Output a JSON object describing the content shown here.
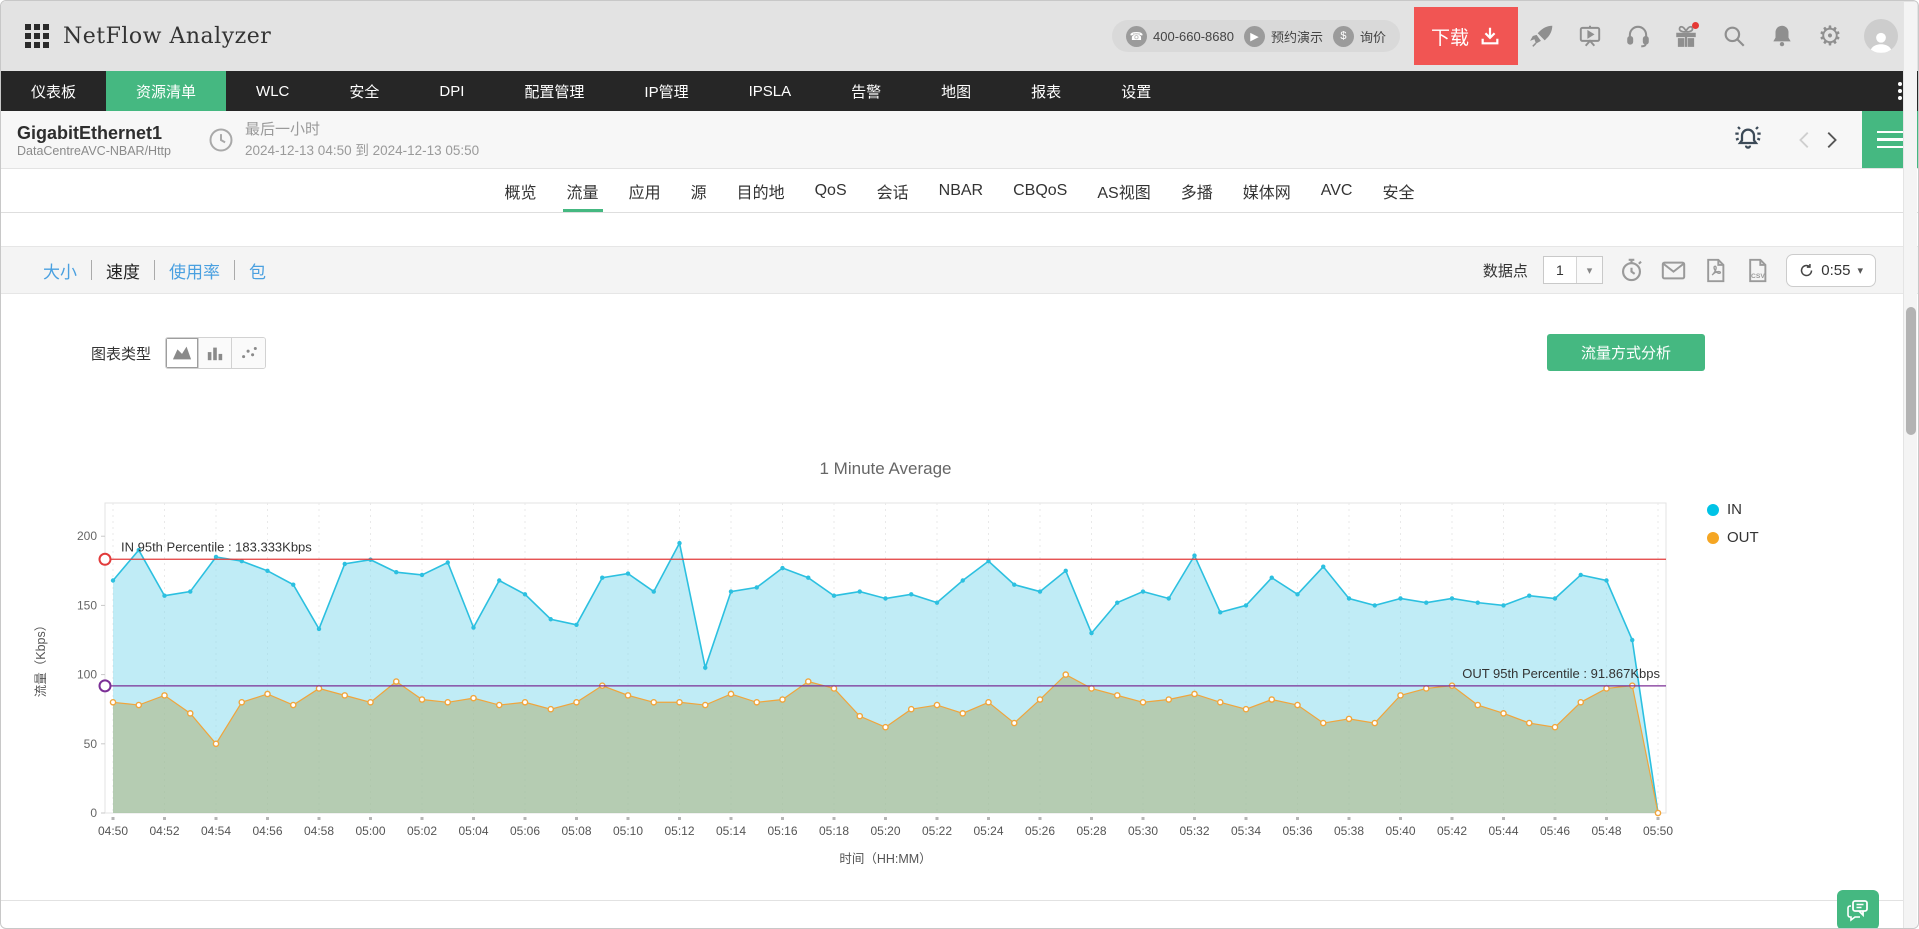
{
  "colors": {
    "accent_green": "#45b881",
    "download_red": "#f15553",
    "link_blue": "#4aa0e0",
    "in_color": "#2cc0e0",
    "in_fill": "rgba(141,220,238,0.55)",
    "out_color": "#f0a53c",
    "out_fill": "rgba(172,178,122,0.55)",
    "in_percentile_line": "#e23b3b",
    "out_percentile_line": "#7b2f96"
  },
  "header": {
    "title": "NetFlow Analyzer",
    "phone": "400-660-8680",
    "demo_label": "预约演示",
    "quote_label": "询价",
    "download_label": "下载",
    "icon_names": [
      "apps-grid-icon",
      "phone-icon",
      "demo-play-icon",
      "price-dollar-icon",
      "download-icon",
      "rocket-icon",
      "presentation-icon",
      "headset-icon",
      "gift-icon",
      "search-icon",
      "bell-icon",
      "gear-icon",
      "avatar"
    ]
  },
  "nav": {
    "items": [
      {
        "label": "仪表板",
        "active": false
      },
      {
        "label": "资源清单",
        "active": true
      },
      {
        "label": "WLC",
        "active": false
      },
      {
        "label": "安全",
        "active": false
      },
      {
        "label": "DPI",
        "active": false
      },
      {
        "label": "配置管理",
        "active": false
      },
      {
        "label": "IP管理",
        "active": false
      },
      {
        "label": "IPSLA",
        "active": false
      },
      {
        "label": "告警",
        "active": false
      },
      {
        "label": "地图",
        "active": false
      },
      {
        "label": "报表",
        "active": false
      },
      {
        "label": "设置",
        "active": false
      }
    ]
  },
  "subheader": {
    "title": "GigabitEthernet1",
    "subtitle": "DataCentreAVC-NBAR/Http",
    "time_range_label": "最后一小时",
    "time_range": "2024-12-13 04:50 到 2024-12-13 05:50"
  },
  "tabs": {
    "items": [
      {
        "label": "概览",
        "active": false
      },
      {
        "label": "流量",
        "active": true
      },
      {
        "label": "应用",
        "active": false
      },
      {
        "label": "源",
        "active": false
      },
      {
        "label": "目的地",
        "active": false
      },
      {
        "label": "QoS",
        "active": false
      },
      {
        "label": "会话",
        "active": false
      },
      {
        "label": "NBAR",
        "active": false
      },
      {
        "label": "CBQoS",
        "active": false
      },
      {
        "label": "AS视图",
        "active": false
      },
      {
        "label": "多播",
        "active": false
      },
      {
        "label": "媒体网",
        "active": false
      },
      {
        "label": "AVC",
        "active": false
      },
      {
        "label": "安全",
        "active": false
      }
    ]
  },
  "toolbar": {
    "views": [
      {
        "label": "大小",
        "style": "link"
      },
      {
        "label": "速度",
        "style": "current"
      },
      {
        "label": "使用率",
        "style": "link"
      },
      {
        "label": "包",
        "style": "link"
      }
    ],
    "datapoints_label": "数据点",
    "datapoints_value": "1",
    "refresh_countdown": "0:55",
    "icon_names": [
      "schedule-icon",
      "mail-icon",
      "pdf-export-icon",
      "csv-export-icon",
      "refresh-icon"
    ]
  },
  "chart_section": {
    "chart_type_label": "图表类型",
    "chart_type_options": [
      "area-chart",
      "bar-chart",
      "scatter-chart"
    ],
    "chart_type_selected": "area-chart",
    "analysis_button": "流量方式分析"
  },
  "chart_data": {
    "type": "area",
    "title": "1 Minute Average",
    "xlabel": "时间（HH:MM）",
    "ylabel": "流量（Kbps）",
    "ylim": [
      0,
      224
    ],
    "yticks": [
      0,
      50,
      100,
      150,
      200
    ],
    "grid": "vertical-dashed",
    "legend_position": "right",
    "x": [
      "04:50",
      "04:51",
      "04:52",
      "04:53",
      "04:54",
      "04:55",
      "04:56",
      "04:57",
      "04:58",
      "04:59",
      "05:00",
      "05:01",
      "05:02",
      "05:03",
      "05:04",
      "05:05",
      "05:06",
      "05:07",
      "05:08",
      "05:09",
      "05:10",
      "05:11",
      "05:12",
      "05:13",
      "05:14",
      "05:15",
      "05:16",
      "05:17",
      "05:18",
      "05:19",
      "05:20",
      "05:21",
      "05:22",
      "05:23",
      "05:24",
      "05:25",
      "05:26",
      "05:27",
      "05:28",
      "05:29",
      "05:30",
      "05:31",
      "05:32",
      "05:33",
      "05:34",
      "05:35",
      "05:36",
      "05:37",
      "05:38",
      "05:39",
      "05:40",
      "05:41",
      "05:42",
      "05:43",
      "05:44",
      "05:45",
      "05:46",
      "05:47",
      "05:48",
      "05:49",
      "05:50"
    ],
    "xtick_labels": [
      "04:50",
      "04:52",
      "04:54",
      "04:56",
      "04:58",
      "05:00",
      "05:02",
      "05:04",
      "05:06",
      "05:08",
      "05:10",
      "05:12",
      "05:14",
      "05:16",
      "05:18",
      "05:20",
      "05:22",
      "05:24",
      "05:26",
      "05:28",
      "05:30",
      "05:32",
      "05:34",
      "05:36",
      "05:38",
      "05:40",
      "05:42",
      "05:44",
      "05:46",
      "05:48",
      "05:50"
    ],
    "series": [
      {
        "name": "IN",
        "values": [
          168,
          190,
          157,
          160,
          185,
          182,
          175,
          165,
          133,
          180,
          183,
          174,
          172,
          181,
          134,
          168,
          158,
          140,
          136,
          170,
          173,
          160,
          195,
          105,
          160,
          163,
          177,
          170,
          157,
          160,
          155,
          158,
          152,
          168,
          182,
          165,
          160,
          175,
          130,
          152,
          160,
          155,
          186,
          145,
          150,
          170,
          158,
          178,
          155,
          150,
          155,
          152,
          155,
          152,
          150,
          157,
          155,
          172,
          168,
          125,
          0
        ]
      },
      {
        "name": "OUT",
        "values": [
          80,
          78,
          85,
          72,
          50,
          80,
          86,
          78,
          90,
          85,
          80,
          95,
          82,
          80,
          83,
          78,
          80,
          75,
          80,
          92,
          85,
          80,
          80,
          78,
          86,
          80,
          82,
          95,
          90,
          70,
          62,
          75,
          78,
          72,
          80,
          65,
          82,
          100,
          90,
          85,
          80,
          82,
          86,
          80,
          75,
          82,
          78,
          65,
          68,
          65,
          85,
          90,
          92,
          78,
          72,
          65,
          62,
          80,
          90,
          92,
          0
        ]
      }
    ],
    "annotations": [
      {
        "label": "IN 95th Percentile : 183.333Kbps",
        "value": 183.333,
        "side": "left"
      },
      {
        "label": "OUT 95th Percentile : 91.867Kbps",
        "value": 91.867,
        "side": "right"
      }
    ],
    "legend": [
      {
        "label": "IN",
        "color": "#00c3e6"
      },
      {
        "label": "OUT",
        "color": "#f5a623"
      }
    ]
  }
}
